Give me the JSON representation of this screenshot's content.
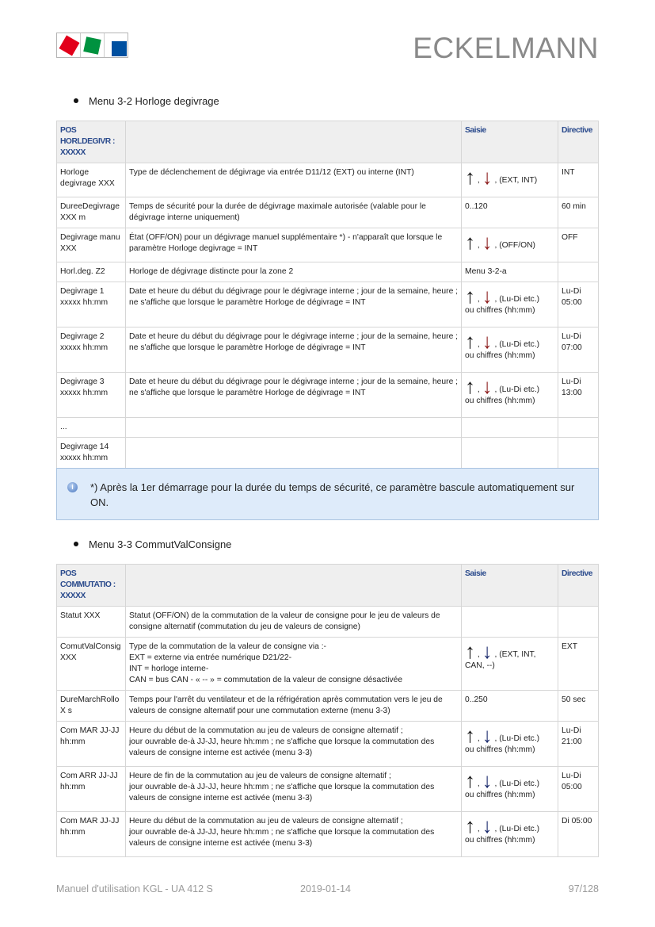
{
  "header": {
    "brand": "ECKELMANN",
    "logo_colors": [
      "#e2001a",
      "#00923f",
      "#0050a0"
    ]
  },
  "section1": {
    "title": "Menu 3-2 Horloge degivrage",
    "columns": [
      "POS HORLDEGIVR : XXXXX",
      "",
      "Saisie",
      "Directive"
    ],
    "rows": [
      {
        "pos": "Horloge degivrage XXX",
        "desc": "Type de déclenchement de dégivrage via entrée D11/12 (EXT) ou interne (INT)",
        "saisie_arrows": true,
        "saisie": ", (EXT, INT)",
        "saisie2": "",
        "directive": "INT"
      },
      {
        "pos": "DureeDegivrage XXX m",
        "desc": "Temps de sécurité pour la durée de dégivrage maximale autorisée (valable pour le dégivrage interne uniquement)",
        "saisie_arrows": false,
        "saisie": "0..120",
        "saisie2": "",
        "directive": "60 min"
      },
      {
        "pos": "Degivrage manu XXX",
        "desc": "État (OFF/ON) pour un dégivrage manuel supplémentaire *) - n'apparaît que lorsque le paramètre Horloge degivrage = INT",
        "saisie_arrows": true,
        "saisie": ", (OFF/ON)",
        "saisie2": "",
        "directive": "OFF"
      },
      {
        "pos": "Horl.deg. Z2",
        "desc": "Horloge de dégivrage distincte pour la zone 2",
        "saisie_arrows": false,
        "saisie": "Menu 3-2-a",
        "saisie2": "",
        "directive": ""
      },
      {
        "pos": "Degivrage 1 xxxxx hh:mm",
        "desc": "Date et heure du début du dégivrage pour le dégivrage interne ; jour de la semaine, heure ; ne s'affiche que lorsque le paramètre Horloge de dégivrage = INT",
        "saisie_arrows": true,
        "saisie": ", (Lu-Di etc.)",
        "saisie2": "ou chiffres (hh:mm)",
        "directive": "Lu-Di 05:00"
      },
      {
        "pos": "Degivrage 2 xxxxx hh:mm",
        "desc": "Date et heure du début du dégivrage pour le dégivrage interne ; jour de la semaine, heure ; ne s'affiche que lorsque le paramètre Horloge de dégivrage = INT",
        "saisie_arrows": true,
        "saisie": ", (Lu-Di etc.)",
        "saisie2": "ou chiffres (hh:mm)",
        "directive": "Lu-Di 07:00"
      },
      {
        "pos": "Degivrage 3 xxxxx hh:mm",
        "desc": "Date et heure du début du dégivrage pour le dégivrage interne ; jour de la semaine, heure ; ne s'affiche que lorsque le paramètre Horloge de dégivrage = INT",
        "saisie_arrows": true,
        "saisie": ", (Lu-Di etc.)",
        "saisie2": "ou chiffres (hh:mm)",
        "directive": "Lu-Di 13:00"
      },
      {
        "pos": "...",
        "desc": "",
        "saisie_arrows": false,
        "saisie": "",
        "saisie2": "",
        "directive": ""
      },
      {
        "pos": "Degivrage 14 xxxxx hh:mm",
        "desc": "",
        "saisie_arrows": false,
        "saisie": "",
        "saisie2": "",
        "directive": ""
      }
    ]
  },
  "note": {
    "icon": "info-icon",
    "text": "*) Après la 1er démarrage pour la durée du temps de sécurité, ce paramètre bascule automatiquement sur ON."
  },
  "section2": {
    "title": "Menu 3-3 CommutValConsigne",
    "columns": [
      "POS COMMUTATIO : XXXXX",
      "",
      "Saisie",
      "Directive"
    ],
    "rows": [
      {
        "pos": "Statut XXX",
        "desc": "Statut (OFF/ON) de la commutation de la valeur de consigne pour le jeu de valeurs de consigne alternatif (commutation du jeu de valeurs de consigne)",
        "saisie_arrows": false,
        "saisie": "",
        "saisie2": "",
        "directive": ""
      },
      {
        "pos": "ComutValConsig XXX",
        "desc": "Type de la commutation de la valeur de consigne via :-\nEXT = externe via entrée numérique D21/22-\nINT = horloge interne-\nCAN = bus CAN - « -- » = commutation de la valeur de consigne désactivée",
        "saisie_arrows": true,
        "saisie": ", (EXT, INT,",
        "saisie2": "CAN, --)",
        "directive": "EXT"
      },
      {
        "pos": "DureMarchRollo X s",
        "desc": "Temps pour l'arrêt du ventilateur et de la réfrigération après commutation vers le jeu de valeurs de consigne alternatif pour une commutation externe (menu 3-3)",
        "saisie_arrows": false,
        "saisie": "0..250",
        "saisie2": "",
        "directive": "50 sec"
      },
      {
        "pos": "Com MAR JJ-JJ hh:mm",
        "desc": "Heure du début de la commutation au jeu de valeurs de consigne alternatif ;\njour ouvrable de-à JJ-JJ, heure hh:mm ; ne s'affiche que lorsque la commutation des valeurs de consigne interne est activée (menu 3-3)",
        "saisie_arrows": true,
        "saisie": ", (Lu-Di etc.)",
        "saisie2": "ou chiffres (hh:mm)",
        "directive": "Lu-Di 21:00"
      },
      {
        "pos": "Com ARR JJ-JJ hh:mm",
        "desc": "Heure de fin de la commutation au jeu de valeurs de consigne alternatif ;\njour ouvrable de-à JJ-JJ, heure hh:mm ; ne s'affiche que lorsque la commutation des valeurs de consigne interne est activée (menu 3-3)",
        "saisie_arrows": true,
        "saisie": ", (Lu-Di etc.)",
        "saisie2": "ou chiffres (hh:mm)",
        "directive": "Lu-Di 05:00"
      },
      {
        "pos": "Com MAR JJ-JJ hh:mm",
        "desc": "Heure du début de la commutation au jeu de valeurs de consigne alternatif ;\njour ouvrable de-à JJ-JJ, heure hh:mm ; ne s'affiche que lorsque la commutation des valeurs de consigne interne est activée (menu 3-3)",
        "saisie_arrows": true,
        "saisie": ", (Lu-Di etc.)",
        "saisie2": "ou chiffres (hh:mm)",
        "directive": "Di 05:00"
      }
    ]
  },
  "footer": {
    "doc": "Manuel d'utilisation KGL - UA 412 S",
    "date": "2019-01-14",
    "page": "97/128"
  }
}
